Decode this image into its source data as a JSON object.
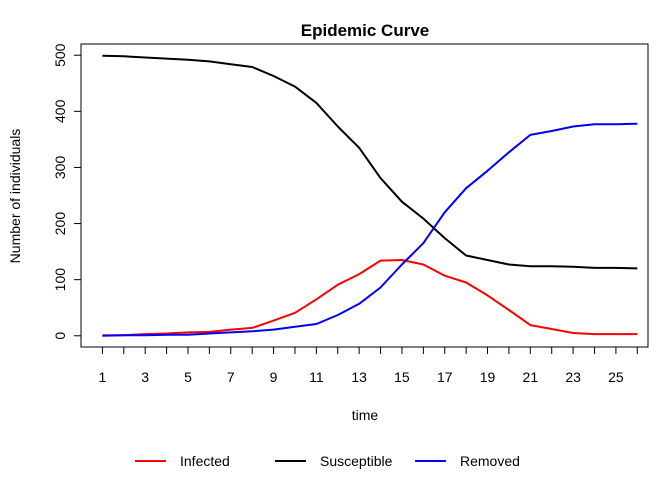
{
  "chart_data": {
    "type": "line",
    "title": "Epidemic Curve",
    "xlabel": "time",
    "ylabel": "Number of individuals",
    "x": [
      1,
      2,
      3,
      4,
      5,
      6,
      7,
      8,
      9,
      10,
      11,
      12,
      13,
      14,
      15,
      16,
      17,
      18,
      19,
      20,
      21,
      22,
      23,
      24,
      25,
      26
    ],
    "xlim": [
      0,
      26.5
    ],
    "ylim": [
      -20,
      520
    ],
    "xticks": [
      1,
      2,
      3,
      4,
      5,
      6,
      7,
      8,
      9,
      10,
      11,
      12,
      13,
      14,
      15,
      16,
      17,
      18,
      19,
      20,
      21,
      22,
      23,
      24,
      25,
      26
    ],
    "xtick_labels": [
      1,
      3,
      5,
      7,
      9,
      11,
      13,
      15,
      17,
      19,
      21,
      23,
      25
    ],
    "yticks": [
      0,
      100,
      200,
      300,
      400,
      500
    ],
    "grid": false,
    "legend_position": "bottom",
    "series": [
      {
        "name": "Infected",
        "color": "#ff0000",
        "values": [
          1,
          1,
          3,
          4,
          6,
          7,
          11,
          14,
          27,
          41,
          65,
          91,
          110,
          134,
          135,
          127,
          107,
          95,
          72,
          46,
          19,
          12,
          5,
          3,
          3,
          3
        ]
      },
      {
        "name": "Susceptible",
        "color": "#000000",
        "values": [
          499,
          498,
          496,
          494,
          492,
          489,
          484,
          479,
          463,
          444,
          415,
          373,
          335,
          281,
          239,
          209,
          174,
          143,
          135,
          127,
          124,
          124,
          123,
          121,
          121,
          120
        ]
      },
      {
        "name": "Removed",
        "color": "#0000ff",
        "values": [
          0,
          1,
          1,
          2,
          2,
          4,
          6,
          8,
          11,
          16,
          21,
          37,
          57,
          86,
          127,
          165,
          220,
          263,
          294,
          327,
          358,
          365,
          373,
          377,
          377,
          378
        ]
      }
    ]
  }
}
